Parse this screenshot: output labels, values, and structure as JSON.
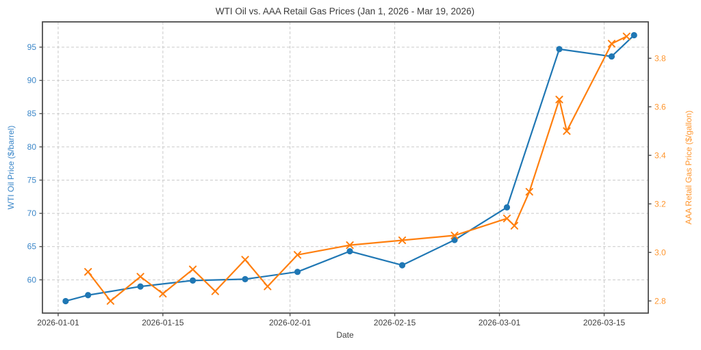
{
  "chart_data": {
    "type": "line",
    "title": "WTI Oil vs. AAA Retail Gas Prices (Jan 1, 2026 - Mar 19, 2026)",
    "xlabel": "Date",
    "grid": true,
    "grid_style": "dashed",
    "grid_color": "#c9c9c9",
    "spine_color": "#4d4d4d",
    "background": "#ffffff",
    "x_axis": {
      "epoch": "2026-01-01",
      "tick_labels": [
        "2026-01-01",
        "2026-01-15",
        "2026-02-01",
        "2026-02-15",
        "2026-03-01",
        "2026-03-15"
      ],
      "tick_days": [
        0,
        14,
        31,
        45,
        59,
        73
      ],
      "range_days": [
        -2.1,
        78.9
      ]
    },
    "left_axis": {
      "label": "WTI Oil Price ($/barrel)",
      "color": "#1f77b4",
      "label_color": "#3a86c8",
      "tick_values": [
        60,
        65,
        70,
        75,
        80,
        85,
        90,
        95
      ],
      "tick_labels": [
        "60",
        "65",
        "70",
        "75",
        "80",
        "85",
        "90",
        "95"
      ],
      "range": [
        55.0,
        98.8
      ]
    },
    "right_axis": {
      "label": "AAA Retail Gas Price ($/gallon)",
      "color": "#ff7f0e",
      "label_color": "#ff962e",
      "tick_values": [
        2.8,
        3.0,
        3.2,
        3.4,
        3.6,
        3.8
      ],
      "tick_labels": [
        "2.8",
        "3.0",
        "3.2",
        "3.4",
        "3.6",
        "3.8"
      ],
      "range": [
        2.75,
        3.95
      ]
    },
    "series": [
      {
        "name": "WTI Oil Price",
        "axis": "left",
        "color": "#1f77b4",
        "marker": "circle",
        "points": [
          {
            "date": "2026-01-02",
            "value": 56.8
          },
          {
            "date": "2026-01-05",
            "value": 57.7
          },
          {
            "date": "2026-01-12",
            "value": 59.0
          },
          {
            "date": "2026-01-19",
            "value": 59.9
          },
          {
            "date": "2026-01-26",
            "value": 60.1
          },
          {
            "date": "2026-02-02",
            "value": 61.2
          },
          {
            "date": "2026-02-09",
            "value": 64.3
          },
          {
            "date": "2026-02-16",
            "value": 62.2
          },
          {
            "date": "2026-02-23",
            "value": 66.0
          },
          {
            "date": "2026-03-02",
            "value": 70.9
          },
          {
            "date": "2026-03-09",
            "value": 94.7
          },
          {
            "date": "2026-03-16",
            "value": 93.6
          },
          {
            "date": "2026-03-19",
            "value": 96.8
          }
        ]
      },
      {
        "name": "AAA Retail Gas Price",
        "axis": "right",
        "color": "#ff7f0e",
        "marker": "x",
        "points": [
          {
            "date": "2026-01-05",
            "value": 2.92
          },
          {
            "date": "2026-01-08",
            "value": 2.8
          },
          {
            "date": "2026-01-12",
            "value": 2.9
          },
          {
            "date": "2026-01-15",
            "value": 2.83
          },
          {
            "date": "2026-01-19",
            "value": 2.93
          },
          {
            "date": "2026-01-22",
            "value": 2.84
          },
          {
            "date": "2026-01-26",
            "value": 2.97
          },
          {
            "date": "2026-01-29",
            "value": 2.86
          },
          {
            "date": "2026-02-02",
            "value": 2.99
          },
          {
            "date": "2026-02-09",
            "value": 3.03
          },
          {
            "date": "2026-02-16",
            "value": 3.05
          },
          {
            "date": "2026-02-23",
            "value": 3.07
          },
          {
            "date": "2026-03-02",
            "value": 3.14
          },
          {
            "date": "2026-03-03",
            "value": 3.11
          },
          {
            "date": "2026-03-05",
            "value": 3.25
          },
          {
            "date": "2026-03-09",
            "value": 3.63
          },
          {
            "date": "2026-03-10",
            "value": 3.5
          },
          {
            "date": "2026-03-16",
            "value": 3.86
          },
          {
            "date": "2026-03-18",
            "value": 3.89
          }
        ]
      }
    ]
  }
}
